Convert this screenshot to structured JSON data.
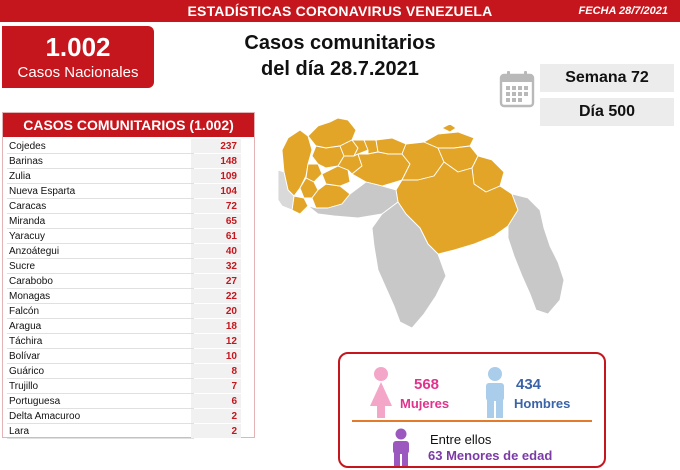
{
  "header": {
    "title": "ESTADÍSTICAS CORONAVIRUS VENEZUELA",
    "date": "FECHA 28/7/2021"
  },
  "national": {
    "count": "1.002",
    "label": "Casos Nacionales"
  },
  "headline": {
    "line1": "Casos comunitarios",
    "line2": "del día 28.7.2021"
  },
  "calendar": {
    "icon": "calendar-icon",
    "week": "Semana 72",
    "day": "Día 500"
  },
  "table": {
    "title": "CASOS COMUNITARIOS (1.002)",
    "rows": [
      {
        "state": "Cojedes",
        "value": "237"
      },
      {
        "state": "Barinas",
        "value": "148"
      },
      {
        "state": "Zulia",
        "value": "109"
      },
      {
        "state": "Nueva Esparta",
        "value": "104"
      },
      {
        "state": "Caracas",
        "value": "72"
      },
      {
        "state": "Miranda",
        "value": "65"
      },
      {
        "state": "Yaracuy",
        "value": "61"
      },
      {
        "state": "Anzoátegui",
        "value": "40"
      },
      {
        "state": "Sucre",
        "value": "32"
      },
      {
        "state": "Carabobo",
        "value": "27"
      },
      {
        "state": "Monagas",
        "value": "22"
      },
      {
        "state": "Falcón",
        "value": "20"
      },
      {
        "state": "Aragua",
        "value": "18"
      },
      {
        "state": "Táchira",
        "value": "12"
      },
      {
        "state": "Bolívar",
        "value": "10"
      },
      {
        "state": "Guárico",
        "value": "8"
      },
      {
        "state": "Trujillo",
        "value": "7"
      },
      {
        "state": "Portuguesa",
        "value": "6"
      },
      {
        "state": "Delta Amacuroo",
        "value": "2"
      },
      {
        "state": "Lara",
        "value": "2"
      }
    ]
  },
  "map": {
    "affected_color": "#e2a528",
    "unaffected_color": "#c8c8c8"
  },
  "gender": {
    "women_count": "568",
    "women_label": "Mujeres",
    "men_count": "434",
    "men_label": "Hombres",
    "minors_intro": "Entre ellos",
    "minors_line": "63 Menores de edad",
    "women_color": "#f4a6c9",
    "men_color": "#a9cdea",
    "minor_color": "#9b59c0"
  },
  "colors": {
    "brand_red": "#c4161c",
    "divider_orange": "#e27b2a"
  }
}
